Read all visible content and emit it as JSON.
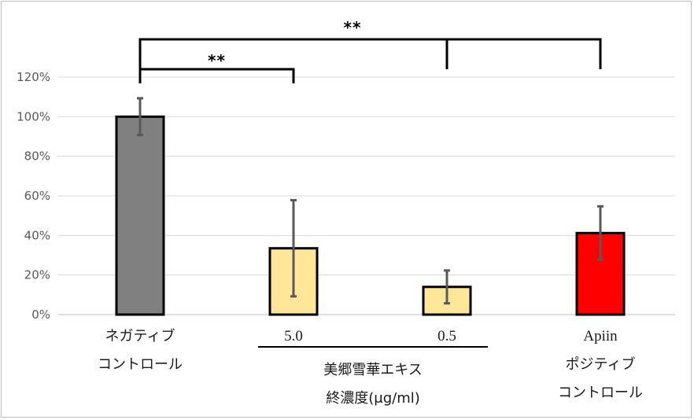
{
  "chart_data": {
    "type": "bar",
    "ylim": [
      0,
      1.2
    ],
    "yticks": [
      "0%",
      "20%",
      "40%",
      "60%",
      "80%",
      "100%",
      "120%"
    ],
    "grid": true,
    "bars": [
      {
        "value": 1.0,
        "err": 0.093,
        "color": "#808080",
        "labels": [
          "ネガティブ",
          "コントロール"
        ]
      },
      {
        "value": 0.335,
        "err": 0.243,
        "color": "#ffe699",
        "labels": [
          "5.0"
        ]
      },
      {
        "value": 0.14,
        "err": 0.083,
        "color": "#ffe699",
        "labels": [
          "0.5"
        ]
      },
      {
        "value": 0.412,
        "err": 0.135,
        "color": "#ff0000",
        "labels": [
          "Apiin",
          "ポジティブ",
          "コントロール"
        ]
      }
    ],
    "group_label": [
      "美郷雪華エキス",
      "終濃度(μg/ml)"
    ],
    "significance": [
      {
        "from": 0,
        "to": 1,
        "label": "**"
      },
      {
        "from": 0,
        "to": [
          2,
          3
        ],
        "label": "**"
      }
    ]
  }
}
